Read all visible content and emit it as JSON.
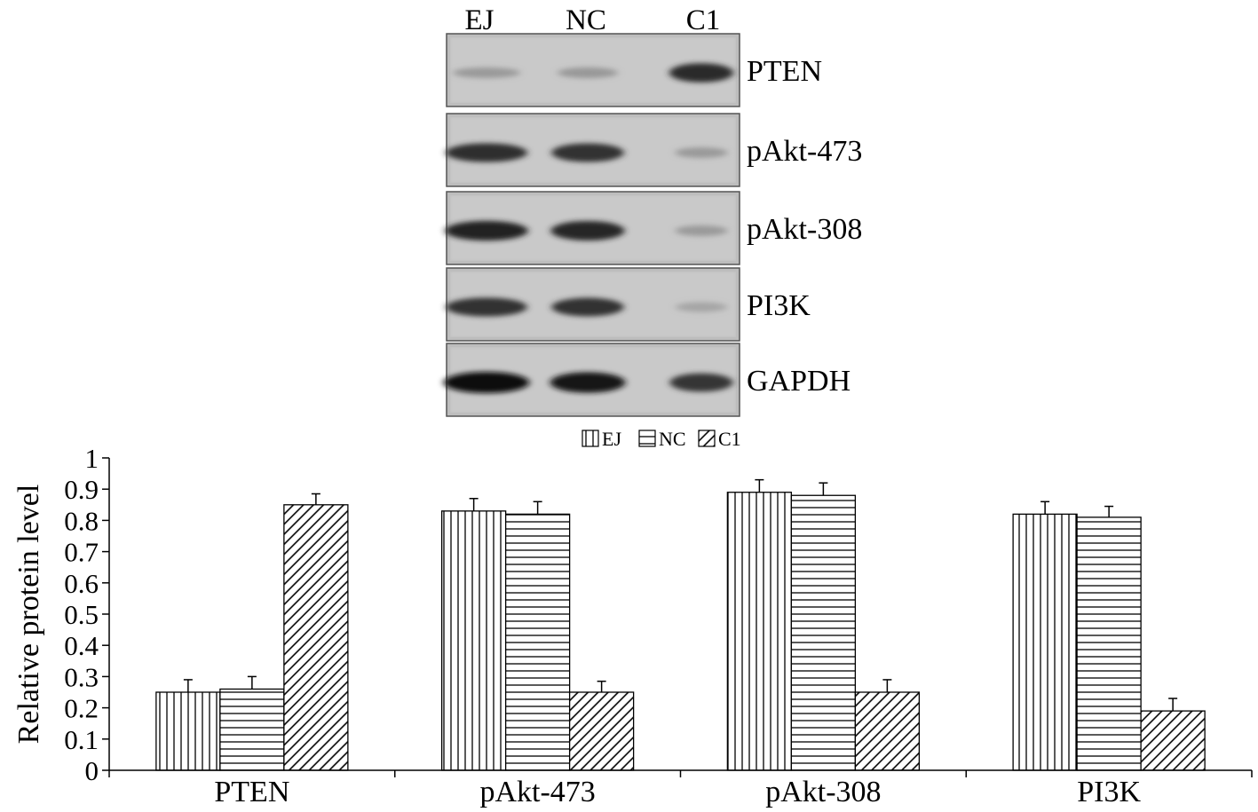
{
  "blot": {
    "lanes": [
      "EJ",
      "NC",
      "C1"
    ],
    "rows": [
      {
        "label": "PTEN",
        "intensity": [
          0.25,
          0.26,
          0.85
        ]
      },
      {
        "label": "pAkt-473",
        "intensity": [
          0.83,
          0.82,
          0.25
        ]
      },
      {
        "label": "pAkt-308",
        "intensity": [
          0.89,
          0.88,
          0.25
        ]
      },
      {
        "label": "PI3K",
        "intensity": [
          0.82,
          0.81,
          0.19
        ]
      },
      {
        "label": "GAPDH",
        "intensity": [
          1.0,
          0.95,
          0.8
        ]
      }
    ]
  },
  "chart_data": {
    "type": "bar",
    "title": "",
    "xlabel": "",
    "ylabel": "Relative protein level",
    "ylim": [
      0,
      1
    ],
    "yticks": [
      0,
      0.1,
      0.2,
      0.3,
      0.4,
      0.5,
      0.6,
      0.7,
      0.8,
      0.9,
      1
    ],
    "ytick_labels": [
      "0",
      "0.1",
      "0.2",
      "0.3",
      "0.4",
      "0.5",
      "0.6",
      "0.7",
      "0.8",
      "0.9",
      "1"
    ],
    "categories": [
      "PTEN",
      "pAkt-473",
      "pAkt-308",
      "PI3K"
    ],
    "series": [
      {
        "name": "EJ",
        "pattern": "vertical-lines",
        "values": [
          0.25,
          0.83,
          0.89,
          0.82
        ],
        "errors": [
          0.04,
          0.04,
          0.04,
          0.04
        ]
      },
      {
        "name": "NC",
        "pattern": "horizontal-lines",
        "values": [
          0.26,
          0.82,
          0.88,
          0.81
        ],
        "errors": [
          0.04,
          0.04,
          0.04,
          0.035
        ]
      },
      {
        "name": "C1",
        "pattern": "diagonal-lines",
        "values": [
          0.85,
          0.25,
          0.25,
          0.19
        ],
        "errors": [
          0.035,
          0.035,
          0.04,
          0.04
        ]
      }
    ],
    "grid": false,
    "legend": "top-center"
  }
}
